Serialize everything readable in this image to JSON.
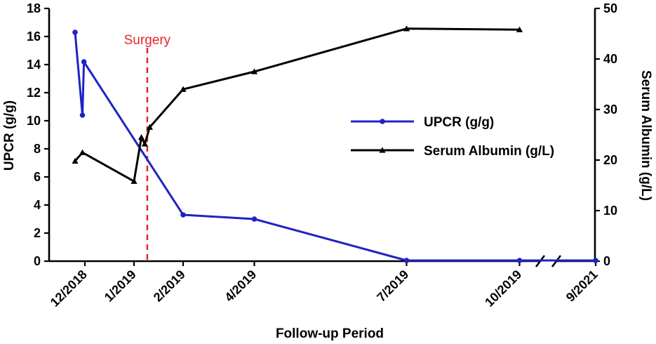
{
  "chart_data": {
    "type": "line",
    "xlabel": "Follow-up Period",
    "ylabel_left": "UPCR (g/g)",
    "ylabel_right": "Serum Albumin (g/L)",
    "ylim_left": [
      0,
      18
    ],
    "ylim_right": [
      0,
      50
    ],
    "yticks_left": [
      "0",
      "2",
      "4",
      "6",
      "8",
      "10",
      "12",
      "14",
      "16",
      "18"
    ],
    "yticks_right": [
      "0",
      "10",
      "20",
      "30",
      "40",
      "50"
    ],
    "x_axis_break": true,
    "x_ticks": [
      {
        "label": "12/2018",
        "t": 0.3
      },
      {
        "label": "1/2019",
        "t": 1.3
      },
      {
        "label": "2/2019",
        "t": 2.3
      },
      {
        "label": "4/2019",
        "t": 3.75
      },
      {
        "label": "7/2019",
        "t": 6.85
      },
      {
        "label": "10/2019",
        "t": 9.15
      },
      {
        "label": "9/2021",
        "t": 10.7
      }
    ],
    "annotation": {
      "label": "Surgery",
      "t": 1.57,
      "color": "#e8262a"
    },
    "legend_position": "center-right",
    "series": [
      {
        "name": "UPCR (g/g)",
        "axis": "left",
        "color": "#1f23c4",
        "marker": "circle",
        "points": [
          [
            0.1,
            16.3
          ],
          [
            0.25,
            10.4
          ],
          [
            0.28,
            14.2
          ],
          [
            2.3,
            3.3
          ],
          [
            3.75,
            3.0
          ],
          [
            6.85,
            0.05
          ],
          [
            9.15,
            0.05
          ],
          [
            10.7,
            0.05
          ]
        ]
      },
      {
        "name": "Serum Albumin (g/L)",
        "axis": "right",
        "color": "#000000",
        "marker": "triangle",
        "points": [
          [
            0.1,
            19.8
          ],
          [
            0.25,
            21.5
          ],
          [
            1.3,
            15.8
          ],
          [
            1.45,
            24.5
          ],
          [
            1.52,
            23.2
          ],
          [
            1.62,
            26.5
          ],
          [
            2.3,
            34.0
          ],
          [
            3.75,
            37.5
          ],
          [
            6.85,
            46.0
          ],
          [
            9.15,
            45.8
          ]
        ]
      }
    ]
  }
}
